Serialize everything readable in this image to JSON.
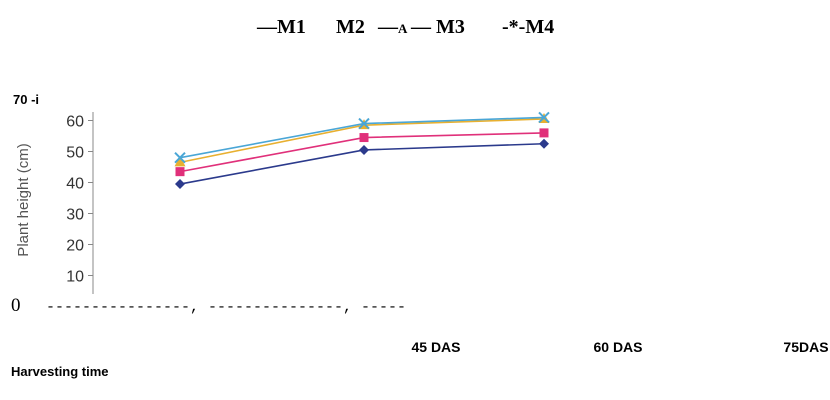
{
  "legend": {
    "m1": "—M1",
    "m2": "M2",
    "m3_prefix": "—",
    "m3_marker": "A",
    "m3": "— M3",
    "m4": "-*-M4"
  },
  "chart_data": {
    "type": "line",
    "categories": [
      "45 DAS",
      "60 DAS",
      "75DAS"
    ],
    "ylabel": "Plant height (cm)",
    "xlabel": "Harvesting time",
    "ylim": [
      0,
      70
    ],
    "y_ticks": [
      10,
      20,
      30,
      40,
      50,
      60
    ],
    "y_top_label": "70 -i",
    "y_zero_label": "0",
    "x_axis_text": "----------------, ---------------, -----",
    "legend_position": "top",
    "series": [
      {
        "name": "M1",
        "values": [
          39.5,
          50.5,
          52.5
        ],
        "color": "#2b3a8c",
        "marker": "diamond"
      },
      {
        "name": "M2",
        "values": [
          43.5,
          54.5,
          56.0
        ],
        "color": "#e0307a",
        "marker": "square"
      },
      {
        "name": "M3",
        "values": [
          46.5,
          58.5,
          60.5
        ],
        "color": "#e8b030",
        "marker": "triangle"
      },
      {
        "name": "M4",
        "values": [
          48.0,
          59.0,
          61.0
        ],
        "color": "#4aa6d6",
        "marker": "x"
      }
    ]
  }
}
